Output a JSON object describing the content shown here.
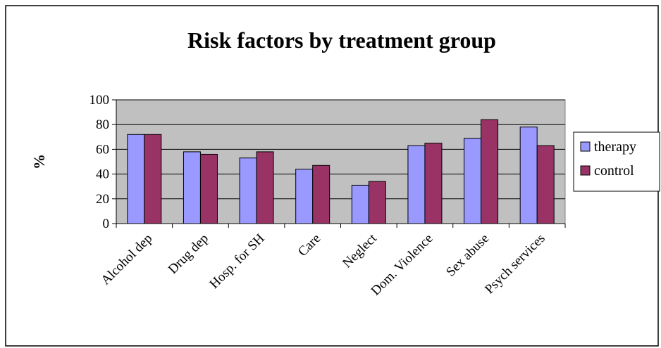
{
  "chart_data": {
    "type": "bar",
    "title": "Risk factors by treatment group",
    "xlabel": "",
    "ylabel": "%",
    "ylim": [
      0,
      100
    ],
    "yticks": [
      0,
      20,
      40,
      60,
      80,
      100
    ],
    "grid": true,
    "legend": "right",
    "categories": [
      "Alcohol dep",
      "Drug dep",
      "Hosp. for SH",
      "Care",
      "Neglect",
      "Dom. Violence",
      "Sex abuse",
      "Psych services"
    ],
    "series": [
      {
        "name": "therapy",
        "color": "#9999ff",
        "values": [
          72,
          58,
          53,
          44,
          31,
          63,
          69,
          78
        ]
      },
      {
        "name": "control",
        "color": "#993366",
        "values": [
          72,
          56,
          58,
          47,
          34,
          65,
          84,
          63
        ]
      }
    ],
    "plot_background": "#c0c0c0"
  }
}
